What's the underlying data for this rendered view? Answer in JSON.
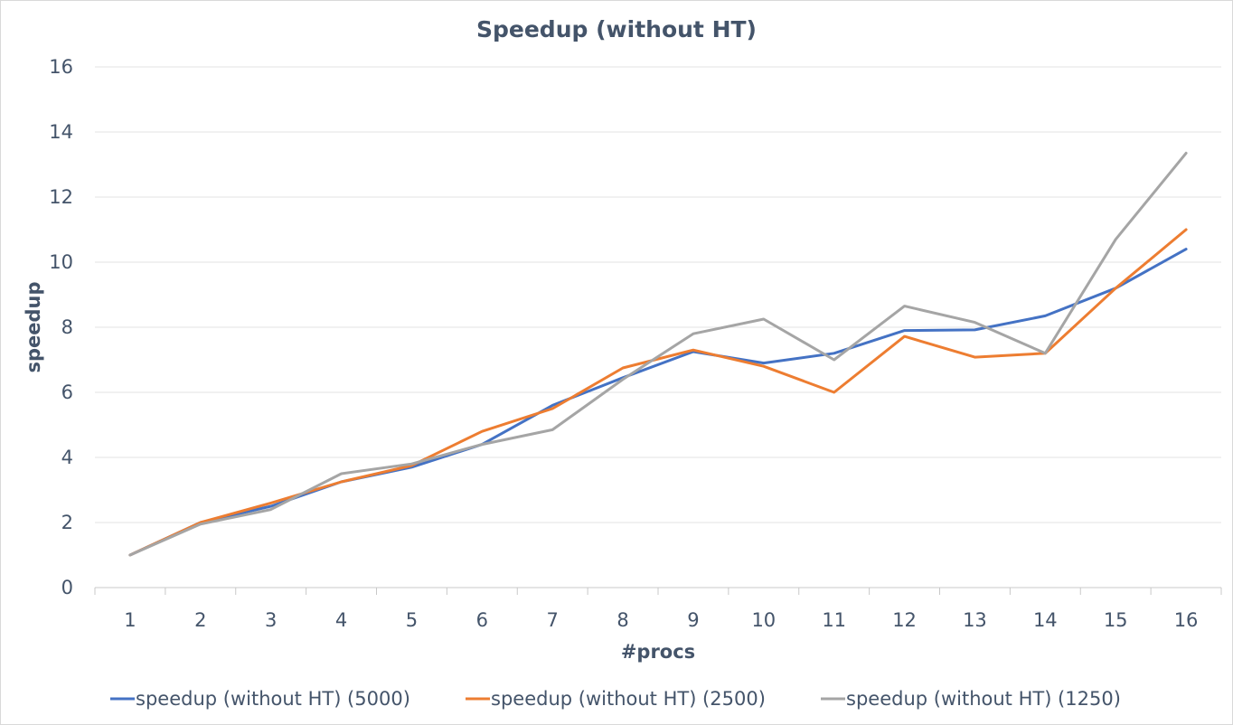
{
  "chart_data": {
    "type": "line",
    "title": "Speedup (without HT)",
    "xlabel": "#procs",
    "ylabel": "speedup",
    "categories": [
      "1",
      "2",
      "3",
      "4",
      "5",
      "6",
      "7",
      "8",
      "9",
      "10",
      "11",
      "12",
      "13",
      "14",
      "15",
      "16"
    ],
    "yticks": [
      "0",
      "2",
      "4",
      "6",
      "8",
      "10",
      "12",
      "14",
      "16"
    ],
    "ylim": [
      0,
      16
    ],
    "grid": true,
    "legend_position": "bottom",
    "series": [
      {
        "name": "speedup (without HT) (5000)",
        "color": "#4472c4",
        "values": [
          1.0,
          2.0,
          2.5,
          3.25,
          3.7,
          4.4,
          5.6,
          6.45,
          7.25,
          6.9,
          7.2,
          7.9,
          7.92,
          8.35,
          9.2,
          10.4
        ]
      },
      {
        "name": "speedup (without HT) (2500)",
        "color": "#ed7d31",
        "values": [
          1.0,
          2.0,
          2.6,
          3.25,
          3.75,
          4.8,
          5.5,
          6.75,
          7.3,
          6.8,
          6.0,
          7.72,
          7.08,
          7.2,
          9.2,
          11.0
        ]
      },
      {
        "name": "speedup (without HT) (1250)",
        "color": "#a5a5a5",
        "values": [
          1.0,
          1.95,
          2.4,
          3.5,
          3.8,
          4.4,
          4.85,
          6.4,
          7.8,
          8.25,
          7.0,
          8.65,
          8.15,
          7.2,
          10.7,
          13.35
        ]
      }
    ]
  }
}
